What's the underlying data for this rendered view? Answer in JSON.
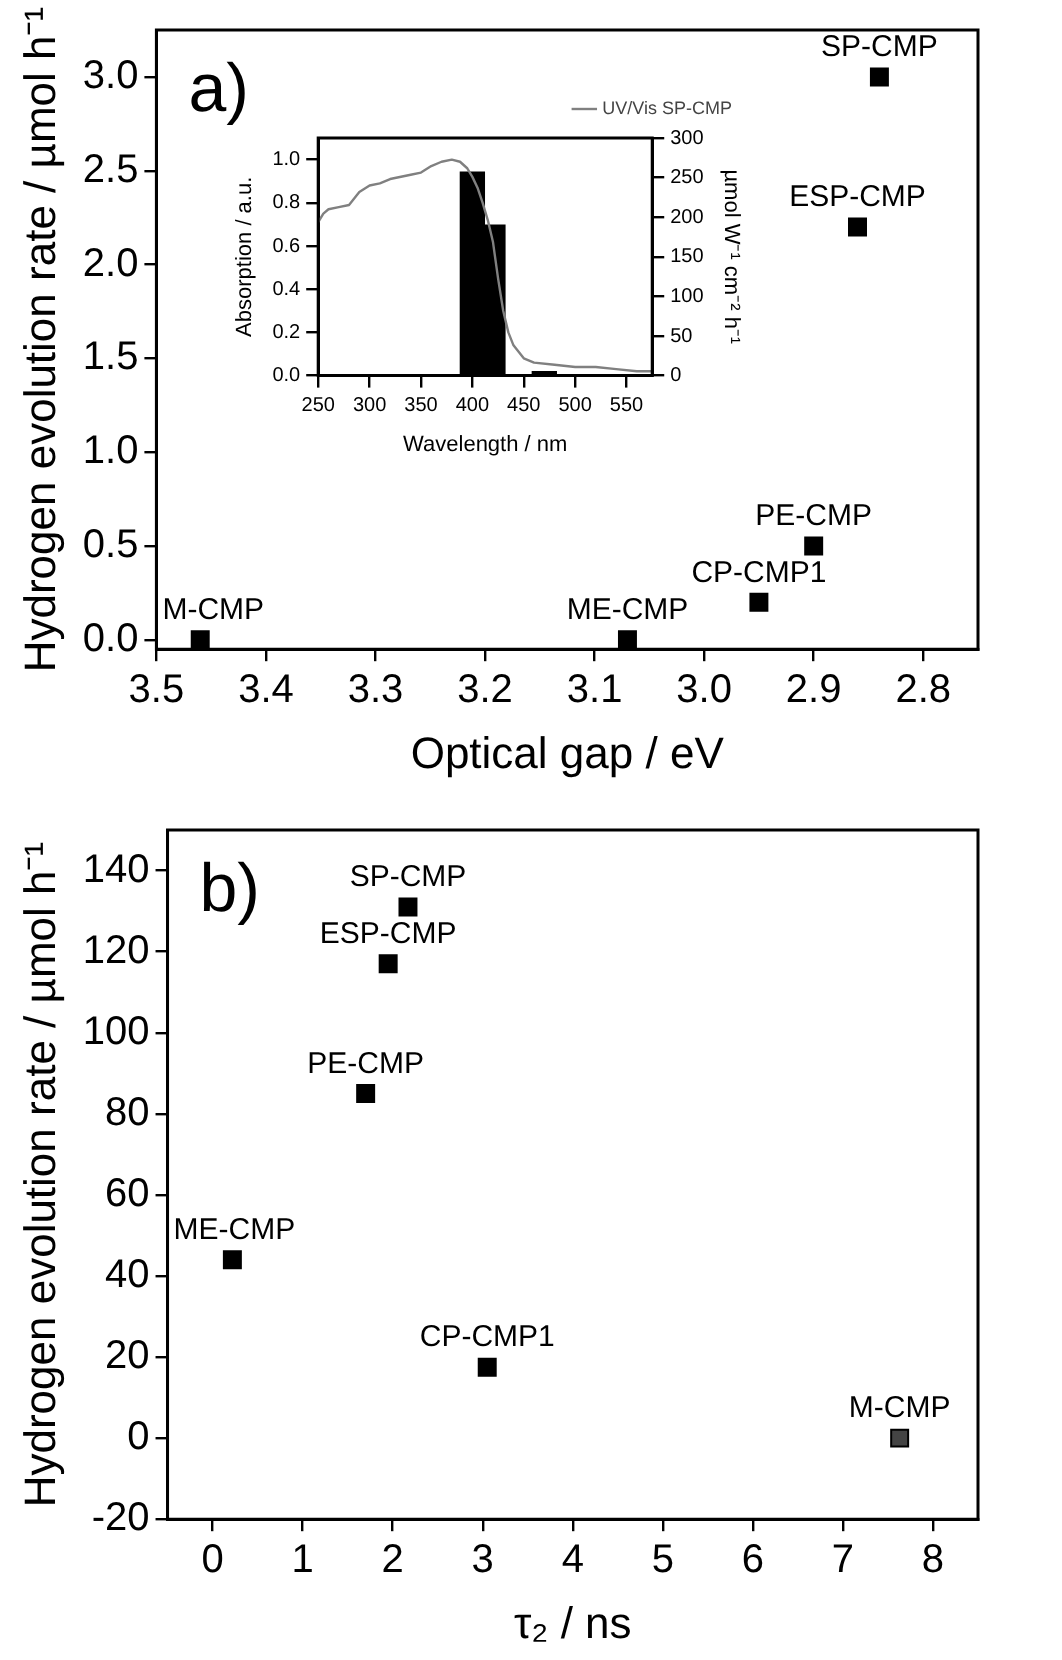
{
  "chart_data": [
    {
      "type": "scatter",
      "xlabel": "Optical gap / eV",
      "ylabel": "Hydrogen evolution rate / µmol h⁻¹",
      "xlim": [
        3.5,
        2.75
      ],
      "xticks": [
        {
          "value": 3.5,
          "label": "3.5"
        },
        {
          "value": 3.4,
          "label": "3.4"
        },
        {
          "value": 3.3,
          "label": "3.3"
        },
        {
          "value": 3.2,
          "label": "3.2"
        },
        {
          "value": 3.1,
          "label": "3.1"
        },
        {
          "value": 3.0,
          "label": "3.0"
        },
        {
          "value": 2.9,
          "label": "2.9"
        },
        {
          "value": 2.8,
          "label": "2.8"
        }
      ],
      "ylim": [
        -0.05,
        3.25
      ],
      "yticks": [
        {
          "value": 0,
          "label": "0.0"
        },
        {
          "value": 0.5,
          "label": "0.5"
        },
        {
          "value": 1.0,
          "label": "1.0"
        },
        {
          "value": 1.5,
          "label": "1.5"
        },
        {
          "value": 2.0,
          "label": "2.0"
        },
        {
          "value": 2.5,
          "label": "2.5"
        },
        {
          "value": 3.0,
          "label": "3.0"
        }
      ],
      "marker": "square",
      "grid": false,
      "legend": false,
      "series": [
        {
          "color": "#000000",
          "x": [
            3.46,
            3.07,
            2.95,
            2.9,
            2.86,
            2.84
          ],
          "values": [
            0,
            0,
            0.2,
            0.5,
            2.2,
            3.0
          ]
        }
      ],
      "annotations": [
        "a)",
        {
          "text": "M-CMP",
          "x": 3.46,
          "y": 0
        },
        {
          "text": "ME-CMP",
          "x": 3.07,
          "y": 0
        },
        {
          "text": "CP-CMP1",
          "x": 2.95,
          "y": 0.2
        },
        {
          "text": "PE-CMP",
          "x": 2.9,
          "y": 0.5
        },
        {
          "text": "ESP-CMP",
          "x": 2.86,
          "y": 2.2
        },
        {
          "text": "SP-CMP",
          "x": 2.84,
          "y": 3.0
        }
      ]
    },
    {
      "type": "line",
      "xlabel": "Wavelength / nm",
      "ylabel": "Absorption / a.u.",
      "y2label": "µmol W⁻¹ cm⁻² h⁻¹",
      "xlim": [
        250,
        575
      ],
      "xticks": [
        250,
        300,
        350,
        400,
        450,
        500,
        550
      ],
      "ylim": [
        0,
        1.1
      ],
      "yticks": [
        {
          "value": 0,
          "label": "0.0"
        },
        {
          "value": 0.2,
          "label": "0.2"
        },
        {
          "value": 0.4,
          "label": "0.4"
        },
        {
          "value": 0.6,
          "label": "0.6"
        },
        {
          "value": 0.8,
          "label": "0.8"
        },
        {
          "value": 1.0,
          "label": "1.0"
        }
      ],
      "y2lim": [
        0,
        300
      ],
      "y2ticks": [
        0,
        50,
        100,
        150,
        200,
        250,
        300
      ],
      "grid": false,
      "legend": "top right",
      "marker": "none",
      "series": [
        {
          "type": "bar",
          "axis": "y2",
          "color": "#000000",
          "x": [
            400,
            420,
            470
          ],
          "values": [
            257,
            190,
            5
          ]
        },
        {
          "name": "UV/Vis SP-CMP",
          "color": "#808080",
          "x": [
            250,
            255,
            260,
            270,
            280,
            290,
            300,
            310,
            320,
            340,
            350,
            360,
            370,
            380,
            388,
            395,
            400,
            405,
            410,
            415,
            420,
            425,
            430,
            435,
            440,
            450,
            460,
            480,
            500,
            520,
            540,
            560,
            575
          ],
          "values": [
            0.71,
            0.75,
            0.77,
            0.78,
            0.79,
            0.85,
            0.88,
            0.89,
            0.91,
            0.93,
            0.94,
            0.97,
            0.99,
            1.0,
            0.99,
            0.96,
            0.92,
            0.87,
            0.8,
            0.72,
            0.62,
            0.45,
            0.3,
            0.2,
            0.14,
            0.08,
            0.06,
            0.05,
            0.04,
            0.04,
            0.03,
            0.02,
            0.02
          ]
        }
      ]
    },
    {
      "type": "scatter",
      "xlabel": "τ₂ / ns",
      "ylabel": "Hydrogen evolution rate / µmol h⁻¹",
      "xlim": [
        -0.5,
        8.5
      ],
      "xticks": [
        0,
        1,
        2,
        3,
        4,
        5,
        6,
        7,
        8
      ],
      "ylim": [
        -20,
        150
      ],
      "yticks": [
        -20,
        0,
        20,
        40,
        60,
        80,
        100,
        120,
        140
      ],
      "marker": "square",
      "grid": false,
      "legend": false,
      "series": [
        {
          "color": "#000000",
          "colors": [
            "#000000",
            "#000000",
            "#000000",
            "#000000",
            "#000000",
            "#444444"
          ],
          "x": [
            0.22,
            1.7,
            1.95,
            2.17,
            3.05,
            7.63
          ],
          "values": [
            44,
            85,
            117,
            131,
            17.5,
            0
          ]
        }
      ],
      "annotations": [
        "b)",
        {
          "text": "ME-CMP",
          "x": 0.22,
          "y": 44
        },
        {
          "text": "PE-CMP",
          "x": 1.7,
          "y": 85
        },
        {
          "text": "ESP-CMP",
          "x": 1.95,
          "y": 117
        },
        {
          "text": "SP-CMP",
          "x": 2.17,
          "y": 131
        },
        {
          "text": "CP-CMP1",
          "x": 3.05,
          "y": 17.5
        },
        {
          "text": "M-CMP",
          "x": 7.63,
          "y": 0
        }
      ]
    }
  ]
}
